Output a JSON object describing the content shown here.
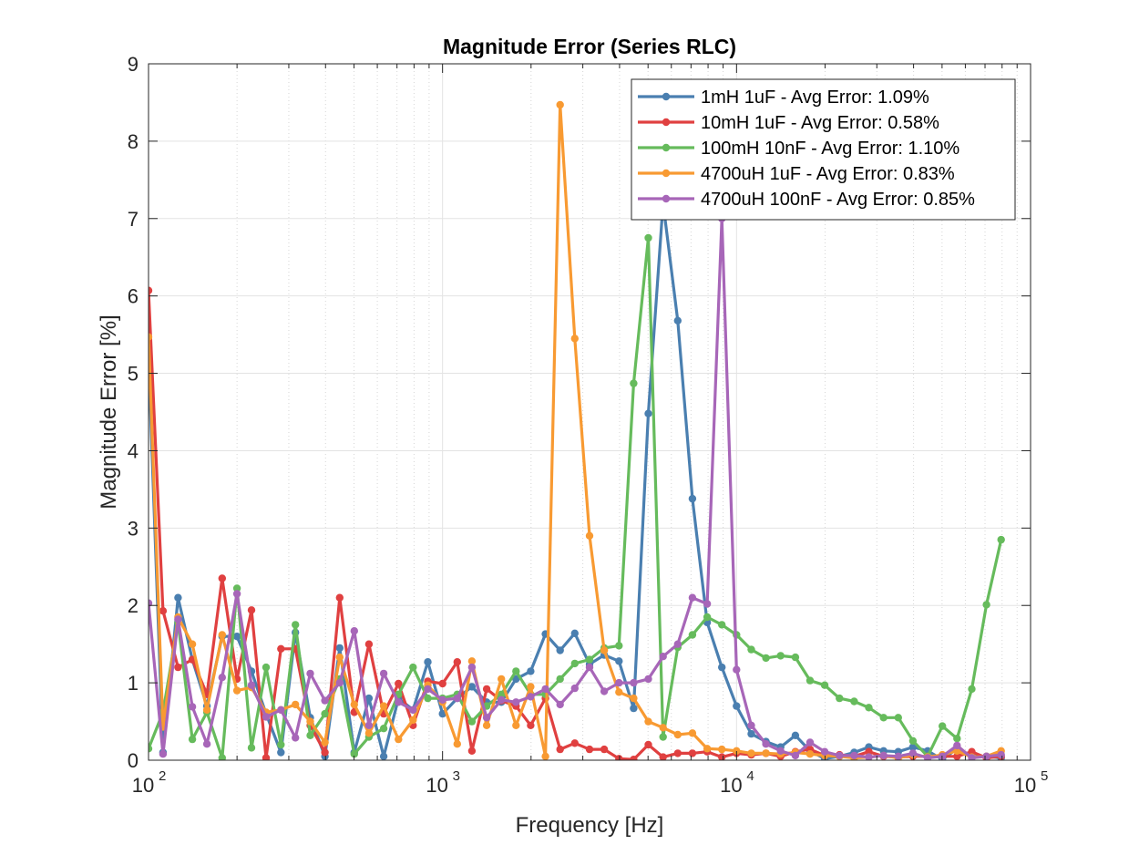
{
  "chart_data": {
    "type": "line",
    "title": "Magnitude Error (Series RLC)",
    "xlabel": "Frequency [Hz]",
    "ylabel": "Magnitude Error [%]",
    "xscale": "log",
    "xlim": [
      100,
      100000
    ],
    "ylim": [
      0,
      9
    ],
    "grid": true,
    "legend_position": "top-right",
    "x_tick_labels": [
      {
        "base": "10",
        "exp": "2"
      },
      {
        "base": "10",
        "exp": "3"
      },
      {
        "base": "10",
        "exp": "4"
      },
      {
        "base": "10",
        "exp": "5"
      }
    ],
    "y_tick_labels": [
      "0",
      "1",
      "2",
      "3",
      "4",
      "5",
      "6",
      "7",
      "8",
      "9"
    ],
    "x": [
      100,
      112,
      126,
      141,
      158,
      178,
      200,
      224,
      251,
      282,
      316,
      355,
      398,
      447,
      501,
      562,
      631,
      708,
      794,
      891,
      1000,
      1122,
      1259,
      1413,
      1585,
      1778,
      1995,
      2239,
      2512,
      2818,
      3162,
      3548,
      3981,
      4467,
      5012,
      5623,
      6310,
      7079,
      7943,
      8913,
      10000,
      11220,
      12589,
      14125,
      15849,
      17783,
      19953,
      22387,
      25119,
      28184,
      31623,
      35481,
      39811,
      44668,
      50119,
      56234,
      63096,
      70795,
      79433
    ],
    "series": [
      {
        "name": "1mH 1uF - Avg Error: 1.09%",
        "color": "#4a7fb0",
        "values": [
          5.2,
          0.1,
          2.1,
          1.3,
          0.7,
          1.6,
          1.6,
          1.15,
          0.6,
          0.1,
          1.65,
          0.55,
          0.05,
          1.45,
          0.1,
          0.8,
          0.05,
          0.8,
          0.65,
          1.27,
          0.6,
          0.8,
          0.95,
          0.75,
          0.75,
          1.05,
          1.15,
          1.63,
          1.42,
          1.64,
          1.24,
          1.36,
          1.28,
          0.67,
          4.48,
          7.2,
          5.68,
          3.38,
          1.78,
          1.2,
          0.7,
          0.34,
          0.24,
          0.17,
          0.32,
          0.12,
          0.02,
          0.05,
          0.1,
          0.17,
          0.12,
          0.11,
          0.17,
          0.12,
          0.01,
          0.15,
          0.05,
          0.05,
          0.03
        ]
      },
      {
        "name": "10mH 1uF - Avg Error: 0.58%",
        "color": "#e04040",
        "values": [
          6.07,
          1.93,
          1.2,
          1.3,
          0.85,
          2.35,
          1.05,
          1.94,
          0.03,
          1.44,
          1.44,
          0.45,
          0.1,
          2.1,
          0.62,
          1.5,
          0.6,
          0.99,
          0.45,
          1.02,
          0.99,
          1.27,
          0.12,
          0.92,
          0.77,
          0.7,
          0.45,
          0.8,
          0.14,
          0.22,
          0.14,
          0.14,
          0.02,
          0.01,
          0.2,
          0.04,
          0.09,
          0.09,
          0.11,
          0.04,
          0.09,
          0.07,
          0.09,
          0.05,
          0.11,
          0.14,
          0.06,
          0.07,
          0.05,
          0.11,
          0.05,
          0.04,
          0.05,
          0.05,
          0.05,
          0.05,
          0.11,
          0.03,
          0.05
        ]
      },
      {
        "name": "100mH 10nF - Avg Error: 1.10%",
        "color": "#66bb5c",
        "values": [
          0.15,
          0.62,
          1.78,
          0.27,
          0.62,
          0.03,
          2.22,
          0.16,
          1.2,
          0.2,
          1.75,
          0.32,
          0.6,
          1.05,
          0.08,
          0.3,
          0.41,
          0.85,
          1.2,
          0.8,
          0.8,
          0.85,
          0.5,
          0.7,
          0.85,
          1.15,
          0.85,
          0.85,
          1.05,
          1.25,
          1.3,
          1.45,
          1.48,
          4.87,
          6.75,
          0.3,
          1.46,
          1.62,
          1.85,
          1.75,
          1.62,
          1.43,
          1.32,
          1.35,
          1.33,
          1.03,
          0.97,
          0.8,
          0.76,
          0.68,
          0.55,
          0.55,
          0.25,
          0.05,
          0.44,
          0.28,
          0.92,
          2.01,
          2.85
        ]
      },
      {
        "name": "4700uH 1uF - Avg Error: 0.83%",
        "color": "#f89a32",
        "values": [
          5.47,
          0.43,
          1.85,
          1.5,
          0.65,
          1.62,
          0.9,
          0.94,
          0.62,
          0.65,
          0.72,
          0.5,
          0.23,
          1.33,
          0.72,
          0.35,
          0.7,
          0.27,
          0.52,
          0.97,
          0.75,
          0.21,
          1.28,
          0.45,
          1.05,
          0.45,
          0.95,
          0.05,
          8.47,
          5.45,
          2.9,
          1.42,
          0.88,
          0.8,
          0.5,
          0.42,
          0.33,
          0.35,
          0.15,
          0.14,
          0.12,
          0.09,
          0.09,
          0.08,
          0.1,
          0.08,
          0.06,
          0.05,
          0.03,
          0.04,
          0.06,
          0.03,
          0.07,
          0.04,
          0.07,
          0.12,
          0.04,
          0.05,
          0.12
        ]
      },
      {
        "name": "4700uH 100nF - Avg Error: 0.85%",
        "color": "#a766b8",
        "values": [
          2.03,
          0.08,
          1.82,
          0.69,
          0.21,
          1.07,
          2.15,
          0.97,
          0.56,
          0.65,
          0.29,
          1.12,
          0.77,
          1.0,
          1.67,
          0.45,
          1.12,
          0.75,
          0.65,
          0.92,
          0.78,
          0.8,
          1.2,
          0.55,
          0.78,
          0.75,
          0.82,
          0.92,
          0.72,
          0.93,
          1.2,
          0.89,
          1.0,
          1.0,
          1.05,
          1.34,
          1.5,
          2.1,
          2.02,
          7.0,
          1.17,
          0.45,
          0.21,
          0.12,
          0.06,
          0.23,
          0.11,
          0.06,
          0.06,
          0.04,
          0.06,
          0.05,
          0.09,
          0.03,
          0.05,
          0.19,
          0.03,
          0.05,
          0.07
        ]
      }
    ]
  }
}
